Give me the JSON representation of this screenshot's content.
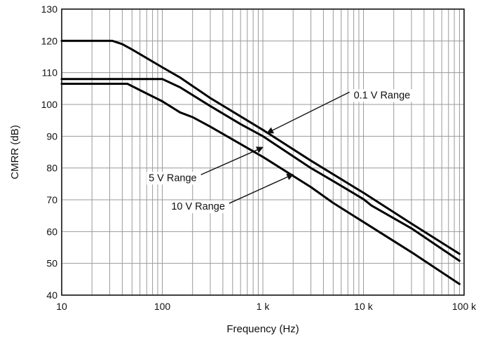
{
  "chart_data": {
    "type": "line",
    "title": "",
    "xlabel": "Frequency (Hz)",
    "ylabel": "CMRR (dB)",
    "x_scale": "log",
    "xlim": [
      10,
      100000
    ],
    "ylim": [
      40,
      130
    ],
    "x_ticks": [
      10,
      100,
      1000,
      10000,
      100000
    ],
    "x_tick_labels": [
      "10",
      "100",
      "1 k",
      "10 k",
      "100 k"
    ],
    "y_ticks": [
      40,
      50,
      60,
      70,
      80,
      90,
      100,
      110,
      120,
      130
    ],
    "y_tick_labels": [
      "40",
      "50",
      "60",
      "70",
      "80",
      "90",
      "100",
      "110",
      "120",
      "130"
    ],
    "grid": true,
    "line_color": "#000000",
    "series": [
      {
        "name": "0.1 V Range",
        "x": [
          10,
          32,
          40,
          50,
          100,
          150,
          200,
          300,
          1000,
          3000,
          10000,
          30000,
          90000
        ],
        "y": [
          120,
          120,
          119,
          117.3,
          111.7,
          108.5,
          105.8,
          102,
          92,
          82.3,
          72.2,
          62.5,
          53
        ]
      },
      {
        "name": "5 V Range",
        "x": [
          10,
          100,
          150,
          300,
          600,
          1000,
          3000,
          5000,
          10000,
          12000,
          30000,
          90000
        ],
        "y": [
          108,
          108,
          105.4,
          99.5,
          93.8,
          90,
          80,
          75.9,
          70.2,
          68.2,
          61,
          50.8
        ]
      },
      {
        "name": "10 V Range",
        "x": [
          10,
          45,
          60,
          100,
          150,
          200,
          300,
          1000,
          3000,
          5000,
          10000,
          30000,
          90000
        ],
        "y": [
          106.5,
          106.5,
          104.5,
          101,
          97.5,
          96,
          93,
          83.5,
          74,
          69,
          63,
          53.5,
          43.5
        ]
      }
    ],
    "annotations": [
      {
        "text": "0.1 V Range",
        "target_x": 1100,
        "target_y": 91,
        "label_x": 8000,
        "label_y": 103
      },
      {
        "text": "5 V Range",
        "target_x": 1000,
        "target_y": 86.5,
        "label_x": 220,
        "label_y": 77
      },
      {
        "text": "10 V Range",
        "target_x": 2000,
        "target_y": 78,
        "label_x": 420,
        "label_y": 68
      }
    ]
  }
}
